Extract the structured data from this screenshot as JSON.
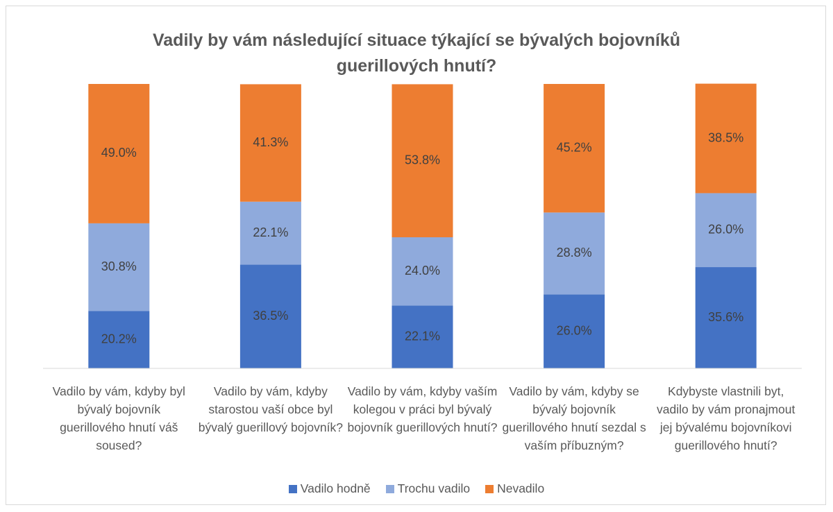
{
  "chart_data": {
    "type": "stacked_bar",
    "title": "Vadily by vám následující situace týkající se bývalých bojovníků guerillových hnutí?",
    "categories": [
      "Vadilo by vám, kdyby byl bývalý bojovník guerillového hnutí váš soused?",
      "Vadilo by vám, kdyby starostou vaší obce byl bývalý guerillový bojovník?",
      "Vadilo by vám, kdyby vaším kolegou v práci byl bývalý bojovník guerillových hnutí?",
      "Vadilo by vám, kdyby se bývalý bojovník guerillového hnutí sezdal s vaším příbuzným?",
      "Kdybyste vlastnili byt, vadilo by vám pronajmout jej bývalému bojovníkovi guerillového hnutí?"
    ],
    "series": [
      {
        "name": "Vadilo hodně",
        "color": "#4472c4",
        "values": [
          20.2,
          36.5,
          22.1,
          26.0,
          35.6
        ],
        "value_labels": [
          "20.2%",
          "36.5%",
          "22.1%",
          "26.0%",
          "35.6%"
        ]
      },
      {
        "name": "Trochu vadilo",
        "color": "#8faadc",
        "values": [
          30.8,
          22.1,
          24.0,
          28.8,
          26.0
        ],
        "value_labels": [
          "30.8%",
          "22.1%",
          "24.0%",
          "28.8%",
          "26.0%"
        ]
      },
      {
        "name": "Nevadilo",
        "color": "#ed7d31",
        "values": [
          49.0,
          41.3,
          53.8,
          45.2,
          38.5
        ],
        "value_labels": [
          "49.0%",
          "41.3%",
          "53.8%",
          "45.2%",
          "38.5%"
        ]
      }
    ],
    "ylim": [
      0,
      100
    ],
    "legend": "bottom"
  }
}
